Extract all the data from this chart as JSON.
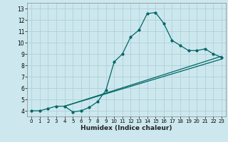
{
  "xlabel": "Humidex (Indice chaleur)",
  "bg_color": "#cce8ee",
  "grid_color": "#b0d0d8",
  "line_color": "#006666",
  "xlim": [
    -0.5,
    23.5
  ],
  "ylim": [
    3.5,
    13.5
  ],
  "xticks": [
    0,
    1,
    2,
    3,
    4,
    5,
    6,
    7,
    8,
    9,
    10,
    11,
    12,
    13,
    14,
    15,
    16,
    17,
    18,
    19,
    20,
    21,
    22,
    23
  ],
  "yticks": [
    4,
    5,
    6,
    7,
    8,
    9,
    10,
    11,
    12,
    13
  ],
  "line1_x": [
    0,
    1,
    2,
    3,
    4,
    5,
    6,
    7,
    8,
    9,
    10,
    11,
    12,
    13,
    14,
    15,
    16,
    17,
    18,
    19,
    20,
    21,
    22,
    23
  ],
  "line1_y": [
    4.0,
    4.0,
    4.2,
    4.4,
    4.4,
    3.9,
    4.0,
    4.3,
    4.8,
    5.8,
    8.3,
    9.0,
    10.5,
    11.1,
    12.55,
    12.65,
    11.7,
    10.2,
    9.75,
    9.3,
    9.3,
    9.45,
    9.0,
    8.7
  ],
  "line2_x": [
    4,
    23
  ],
  "line2_y": [
    4.4,
    8.8
  ],
  "line3_x": [
    4,
    23
  ],
  "line3_y": [
    4.4,
    8.55
  ]
}
